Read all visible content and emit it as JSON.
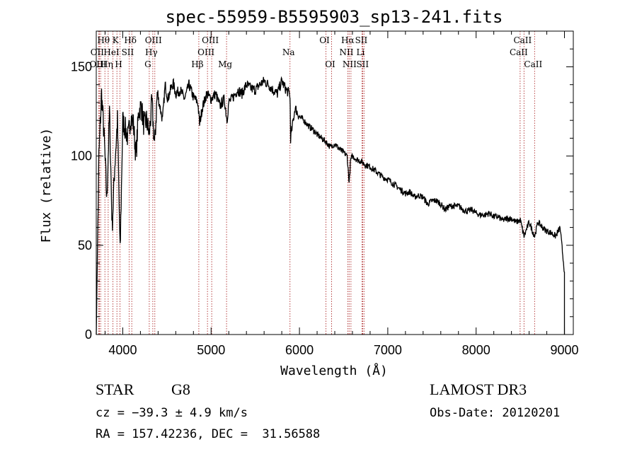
{
  "chart_data": {
    "type": "line",
    "title": "spec-55959-B5595903_sp13-241.fits",
    "xlabel": "Wavelength (Å)",
    "ylabel": "Flux (relative)",
    "xlim": [
      3700,
      9100
    ],
    "ylim": [
      0,
      170
    ],
    "xticks": [
      4000,
      5000,
      6000,
      7000,
      8000,
      9000
    ],
    "yticks": [
      0,
      50,
      100,
      150
    ],
    "series": [
      {
        "name": "spectrum",
        "x": [
          3700,
          3730,
          3760,
          3790,
          3820,
          3850,
          3880,
          3910,
          3940,
          3970,
          4000,
          4030,
          4060,
          4090,
          4120,
          4150,
          4180,
          4210,
          4240,
          4270,
          4300,
          4330,
          4360,
          4390,
          4420,
          4450,
          4480,
          4510,
          4540,
          4570,
          4600,
          4650,
          4700,
          4750,
          4800,
          4850,
          4870,
          4900,
          4950,
          5000,
          5050,
          5100,
          5150,
          5180,
          5200,
          5250,
          5300,
          5350,
          5400,
          5450,
          5500,
          5550,
          5600,
          5650,
          5700,
          5750,
          5800,
          5850,
          5890,
          5895,
          5900,
          5950,
          6000,
          6050,
          6100,
          6150,
          6200,
          6250,
          6300,
          6350,
          6400,
          6450,
          6500,
          6540,
          6563,
          6580,
          6600,
          6650,
          6700,
          6750,
          6800,
          6850,
          6900,
          6950,
          7000,
          7050,
          7100,
          7150,
          7200,
          7250,
          7300,
          7350,
          7400,
          7450,
          7500,
          7550,
          7600,
          7650,
          7700,
          7750,
          7800,
          7850,
          7900,
          7950,
          8000,
          8050,
          8100,
          8150,
          8200,
          8250,
          8300,
          8350,
          8400,
          8450,
          8500,
          8542,
          8600,
          8662,
          8700,
          8750,
          8800,
          8850,
          8900,
          8950,
          9000
        ],
        "values": [
          0,
          100,
          135,
          110,
          75,
          125,
          60,
          95,
          120,
          45,
          120,
          115,
          110,
          122,
          118,
          100,
          125,
          128,
          117,
          120,
          112,
          130,
          105,
          135,
          128,
          120,
          140,
          132,
          137,
          141,
          135,
          137,
          132,
          140,
          133,
          130,
          118,
          127,
          135,
          132,
          135,
          128,
          132,
          120,
          130,
          133,
          137,
          135,
          140,
          138,
          137,
          140,
          142,
          140,
          137,
          135,
          142,
          137,
          135,
          128,
          110,
          127,
          122,
          120,
          117,
          115,
          112,
          110,
          108,
          105,
          107,
          104,
          102,
          100,
          85,
          98,
          100,
          98,
          97,
          95,
          94,
          92,
          90,
          88,
          87,
          85,
          83,
          81,
          79,
          80,
          77,
          78,
          77,
          73,
          75,
          75,
          73,
          70,
          72,
          72,
          72,
          70,
          69,
          70,
          68,
          67,
          67,
          68,
          66,
          66,
          64,
          65,
          65,
          63,
          64,
          55,
          63,
          55,
          63,
          60,
          58,
          57,
          55,
          60,
          35
        ]
      }
    ],
    "lines": [
      {
        "x": 3727,
        "label": "OII"
      },
      {
        "x": 3736,
        "label": "OIII"
      },
      {
        "x": 3750,
        "label": "OIII"
      },
      {
        "x": 3798,
        "label": "Hθ"
      },
      {
        "x": 3835,
        "label": "Hη"
      },
      {
        "x": 3889,
        "label": "HeI"
      },
      {
        "x": 3934,
        "label": "K"
      },
      {
        "x": 3969,
        "label": "H"
      },
      {
        "x": 4072,
        "label": "SII"
      },
      {
        "x": 4102,
        "label": "Hδ"
      },
      {
        "x": 4300,
        "label": "G"
      },
      {
        "x": 4340,
        "label": "Hγ"
      },
      {
        "x": 4363,
        "label": "OIII"
      },
      {
        "x": 4861,
        "label": "Hβ"
      },
      {
        "x": 4959,
        "label": "OIII"
      },
      {
        "x": 5007,
        "label": "OIII"
      },
      {
        "x": 5175,
        "label": "Mg"
      },
      {
        "x": 5893,
        "label": "Na"
      },
      {
        "x": 6300,
        "label": "OI"
      },
      {
        "x": 6364,
        "label": "OI"
      },
      {
        "x": 6548,
        "label": "NII"
      },
      {
        "x": 6563,
        "label": "Hα"
      },
      {
        "x": 6583,
        "label": "NII"
      },
      {
        "x": 6708,
        "label": "Li"
      },
      {
        "x": 6716,
        "label": "SII"
      },
      {
        "x": 6731,
        "label": "SII"
      },
      {
        "x": 8498,
        "label": "CaII"
      },
      {
        "x": 8542,
        "label": "CaII"
      },
      {
        "x": 8662,
        "label": "CaII"
      }
    ],
    "label_rows": {
      "row1": [
        "Hθ",
        "K",
        "Hδ",
        "OIII",
        "OIII",
        "OI",
        "Hα",
        "SII",
        "CaII"
      ],
      "row2": [
        "OII",
        "HeI",
        "SII",
        "Hγ",
        "OIII",
        "Na",
        "NII",
        "Li",
        "CaII"
      ],
      "row3": [
        "OIII",
        "Hη",
        "H",
        "G",
        "Hβ",
        "Mg",
        "OI",
        "NII",
        "SII",
        "CaII"
      ]
    }
  },
  "info": {
    "object_class": "STAR",
    "subclass": "G8",
    "survey": "LAMOST DR3",
    "cz": "cz = −39.3 ± 4.9 km/s",
    "obs_date": "Obs-Date: 20120201",
    "coords": "RA = 157.42236, DEC =  31.56588"
  }
}
